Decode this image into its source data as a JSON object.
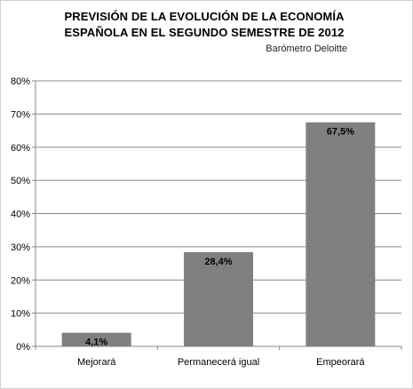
{
  "chart_data": {
    "type": "bar",
    "title_lines": [
      "PREVISIÓN DE LA EVOLUCIÓN DE LA ECONOMÍA",
      "ESPAÑOLA EN EL SEGUNDO SEMESTRE DE 2012"
    ],
    "subtitle": "Barómetro Deloitte",
    "categories": [
      "Mejorará",
      "Permanecerá igual",
      "Empeorará"
    ],
    "values": [
      4.1,
      28.4,
      67.5
    ],
    "data_labels": [
      "4,1%",
      "28,4%",
      "67,5%"
    ],
    "ylim": [
      0,
      80
    ],
    "y_ticks": [
      0,
      10,
      20,
      30,
      40,
      50,
      60,
      70,
      80
    ],
    "y_tick_labels": [
      "0%",
      "10%",
      "20%",
      "30%",
      "40%",
      "50%",
      "60%",
      "70%",
      "80%"
    ],
    "grid": true,
    "bar_color": "#808080",
    "grid_color": "#888888"
  }
}
